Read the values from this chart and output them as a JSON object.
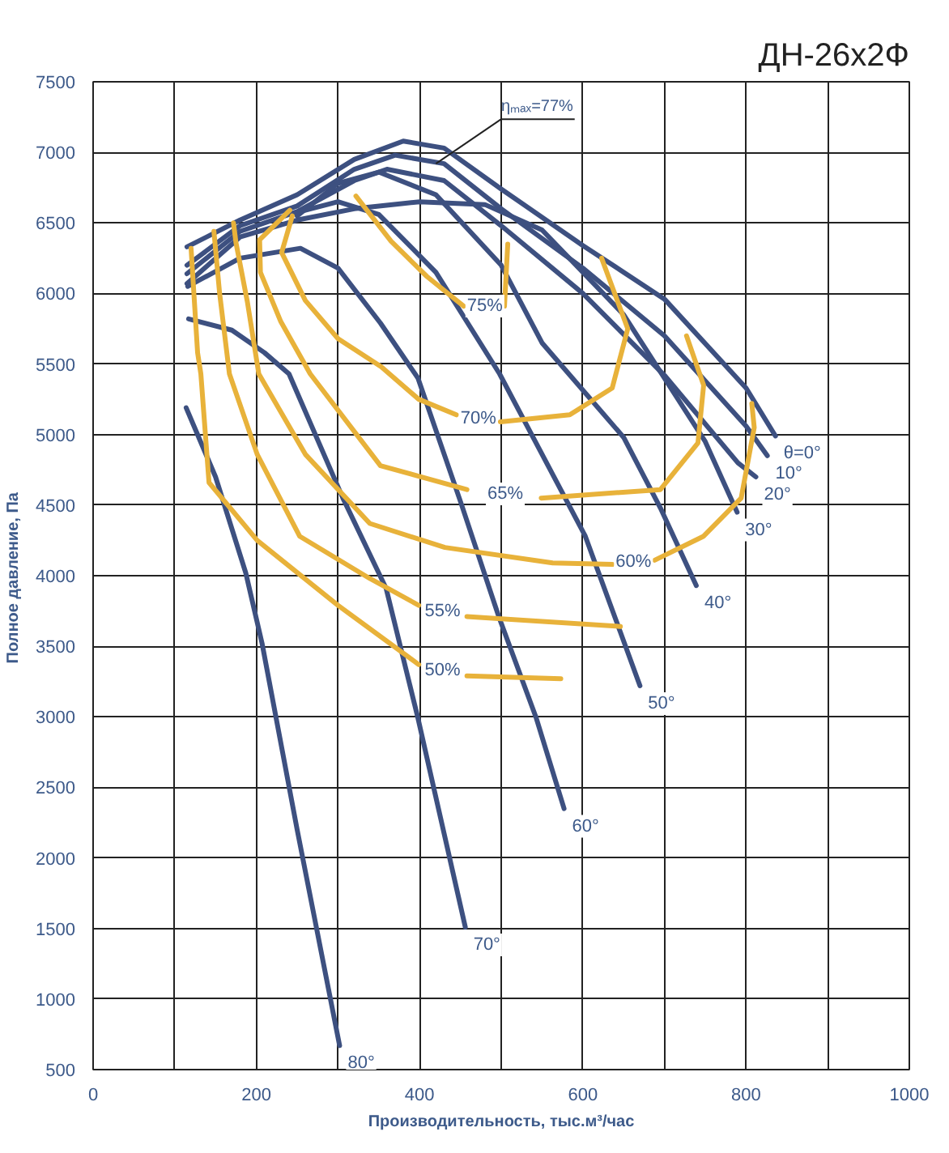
{
  "chart_data": {
    "type": "line",
    "title": "ДН-26х2Ф",
    "xlabel": "Производительность, тыс.м³/час",
    "ylabel": "Полное давление,  Па",
    "xlim": [
      0,
      1000
    ],
    "ylim": [
      500,
      7500
    ],
    "xticks": [
      0,
      {
        "value": 100,
        "label": null
      },
      200,
      {
        "value": 300,
        "label": null
      },
      400,
      {
        "value": 500,
        "label": null
      },
      600,
      {
        "value": 700,
        "label": null
      },
      800,
      {
        "value": 900,
        "label": null
      },
      1000
    ],
    "yticks": [
      500,
      1000,
      1500,
      2000,
      2500,
      3000,
      3500,
      4000,
      4500,
      5000,
      5500,
      6000,
      6500,
      7000,
      7500
    ],
    "grid": true,
    "annotations": [
      {
        "text": "ηₘₐₓ=77%",
        "x": 420,
        "y": 6920
      }
    ],
    "series": [
      {
        "name": "θ=0°",
        "color": "#3d5080",
        "x": [
          115,
          180,
          250,
          320,
          380,
          430,
          500,
          600,
          700,
          800,
          836
        ],
        "values": [
          6330,
          6520,
          6700,
          6950,
          7080,
          7030,
          6740,
          6340,
          5960,
          5330,
          4990
        ]
      },
      {
        "name": "10°",
        "color": "#3d5080",
        "x": [
          115,
          180,
          250,
          320,
          370,
          430,
          500,
          600,
          700,
          800,
          826
        ],
        "values": [
          6200,
          6480,
          6620,
          6880,
          6980,
          6920,
          6600,
          6180,
          5700,
          5060,
          4850
        ]
      },
      {
        "name": "20°",
        "color": "#3d5080",
        "x": [
          115,
          180,
          250,
          320,
          360,
          430,
          500,
          600,
          700,
          790,
          812
        ],
        "values": [
          6140,
          6440,
          6580,
          6800,
          6880,
          6800,
          6480,
          6000,
          5420,
          4800,
          4700
        ]
      },
      {
        "name": "30°",
        "color": "#3d5080",
        "x": [
          115,
          180,
          250,
          320,
          400,
          480,
          550,
          650,
          750,
          789
        ],
        "values": [
          6070,
          6400,
          6520,
          6600,
          6650,
          6630,
          6450,
          5850,
          4950,
          4450
        ]
      },
      {
        "name": "40°",
        "color": "#3d5080",
        "x": [
          250,
          300,
          350,
          420,
          500,
          550,
          650,
          695,
          739
        ],
        "values": [
          6550,
          6780,
          6860,
          6700,
          6200,
          5650,
          4980,
          4480,
          3930
        ]
      },
      {
        "name": "50°",
        "color": "#3d5080",
        "x": [
          240,
          300,
          350,
          420,
          498,
          603,
          670
        ],
        "values": [
          6560,
          6650,
          6560,
          6150,
          5430,
          4280,
          3220
        ]
      },
      {
        "name": "60°",
        "color": "#3d5080",
        "x": [
          116,
          180,
          254,
          300,
          352,
          398,
          451,
          497,
          543,
          577
        ],
        "values": [
          6050,
          6250,
          6320,
          6180,
          5790,
          5400,
          4510,
          3710,
          2990,
          2350
        ]
      },
      {
        "name": "70°",
        "color": "#3d5080",
        "x": [
          117,
          170,
          210,
          240,
          306,
          359,
          398,
          456
        ],
        "values": [
          5820,
          5740,
          5580,
          5430,
          4550,
          3910,
          2990,
          1510
        ]
      },
      {
        "name": "80°",
        "color": "#3d5080",
        "x": [
          114,
          150,
          187,
          207,
          250,
          302
        ],
        "values": [
          5190,
          4700,
          4020,
          3520,
          2200,
          670
        ]
      },
      {
        "name": "75%",
        "color": "#e8b23a",
        "x": [
          322,
          365,
          409,
          454,
          480,
          504,
          508
        ],
        "values": [
          6690,
          6370,
          6120,
          5910,
          null,
          5910,
          6350
        ]
      },
      {
        "name": "70%",
        "color": "#e8b23a",
        "x": [
          244,
          231,
          260,
          300,
          353,
          399,
          445,
          472,
          499,
          584,
          636,
          655,
          623
        ],
        "values": [
          6550,
          6290,
          5950,
          5680,
          5480,
          5250,
          5140,
          null,
          5090,
          5140,
          5330,
          5750,
          6250
        ]
      },
      {
        "name": "65%",
        "color": "#e8b23a",
        "x": [
          241,
          204,
          205,
          230,
          266,
          352,
          458,
          505,
          549,
          695,
          741,
          748,
          727
        ],
        "values": [
          6590,
          6380,
          6150,
          5800,
          5430,
          4780,
          4610,
          null,
          4550,
          4610,
          4940,
          5350,
          5700
        ]
      },
      {
        "name": "60%",
        "color": "#e8b23a",
        "x": [
          172,
          175,
          189,
          203,
          260,
          339,
          431,
          563,
          636,
          662,
          688,
          748,
          794,
          810,
          807
        ],
        "values": [
          6500,
          6360,
          5940,
          5430,
          4860,
          4370,
          4200,
          4090,
          4080,
          null,
          4110,
          4280,
          4550,
          5050,
          5220
        ]
      },
      {
        "name": "55%",
        "color": "#e8b23a",
        "x": [
          148,
          155,
          167,
          201,
          253,
          339,
          399,
          428,
          458,
          646
        ],
        "values": [
          6440,
          6000,
          5430,
          4860,
          4280,
          3980,
          3790,
          null,
          3710,
          3640
        ]
      },
      {
        "name": "50%",
        "color": "#e8b23a",
        "x": [
          120,
          128,
          132,
          142,
          201,
          300,
          399,
          428,
          458,
          573
        ],
        "values": [
          6320,
          5580,
          5430,
          4660,
          4250,
          3790,
          3370,
          null,
          3290,
          3270
        ]
      }
    ]
  }
}
